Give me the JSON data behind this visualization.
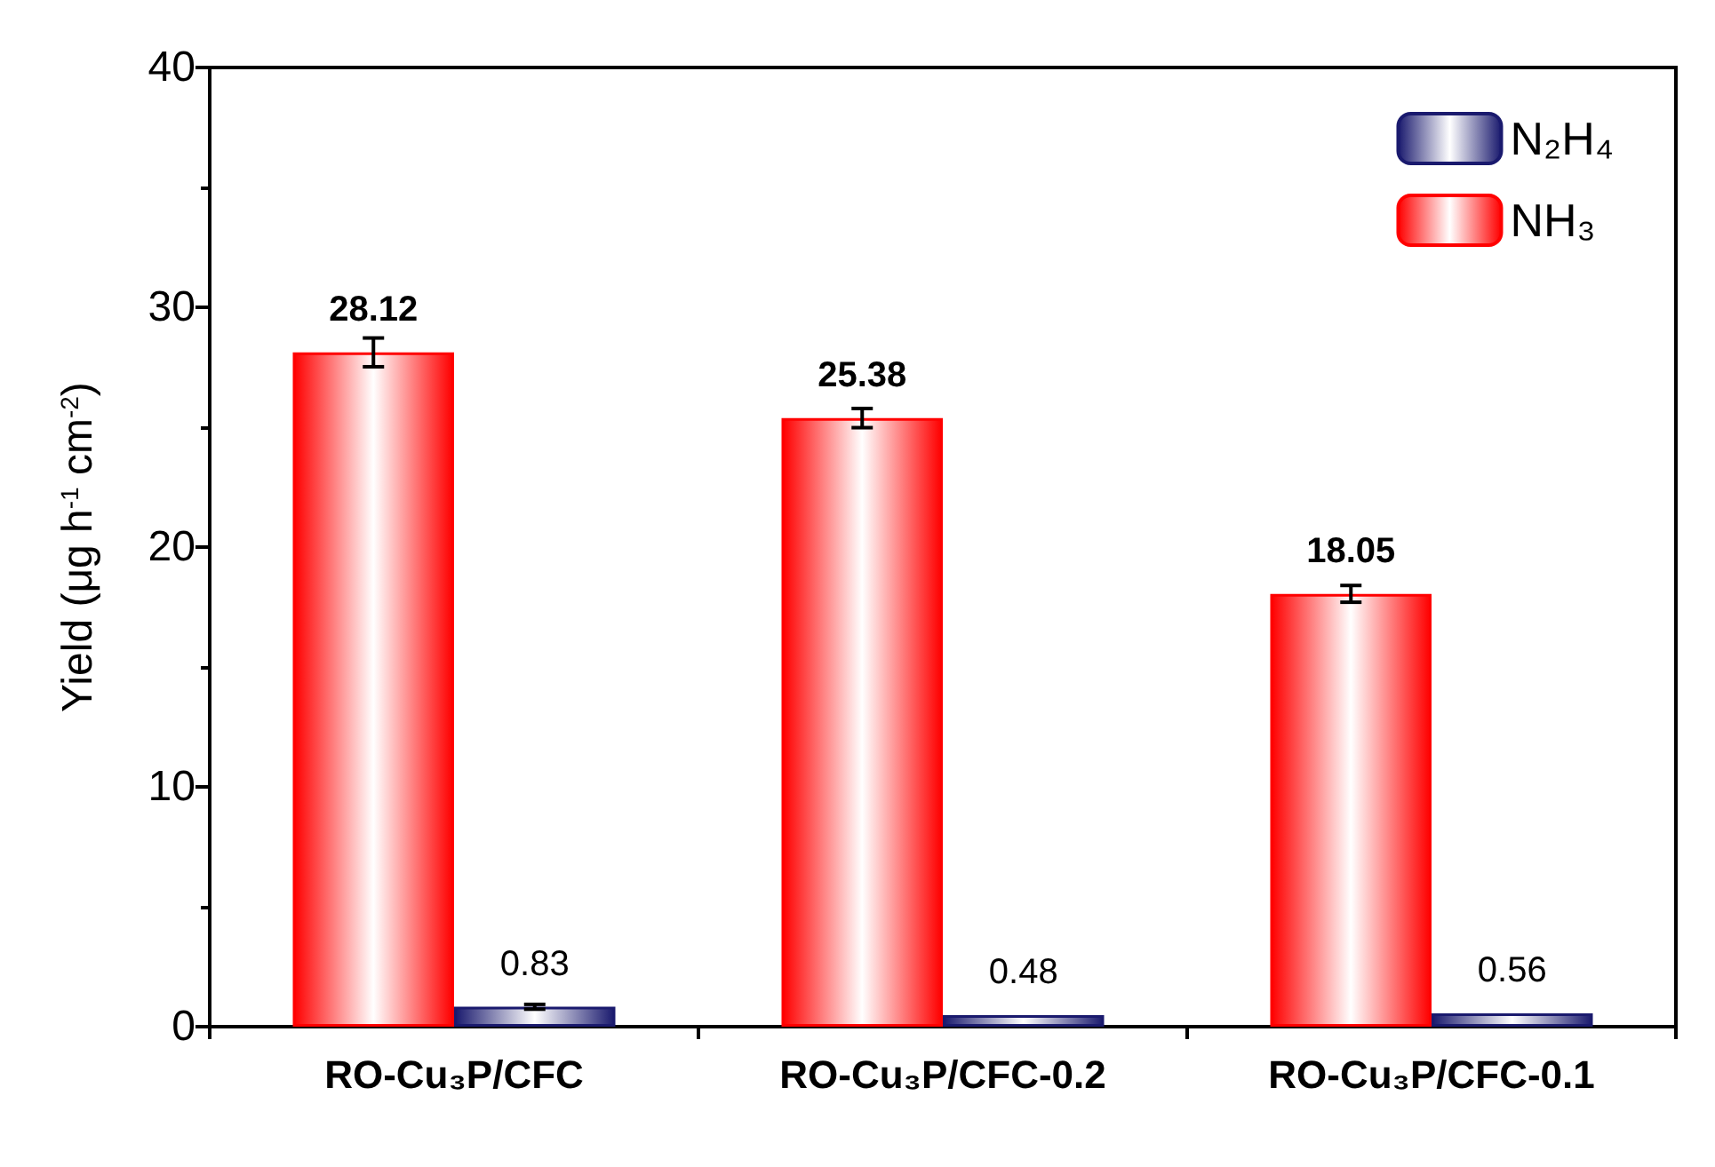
{
  "chart_data": {
    "type": "bar",
    "ylabel": "Yield (μg h$^{-1}$ cm$^{-2}$)",
    "categories": [
      "RO-Cu₃P/CFC",
      "RO-Cu₃P/CFC-0.2",
      "RO-Cu₃P/CFC-0.1"
    ],
    "series": [
      {
        "name": "NH₃",
        "color": "#ff0000",
        "values": [
          28.12,
          25.38,
          18.05
        ],
        "errors": [
          0.6,
          0.4,
          0.35
        ],
        "value_labels": [
          "28.12",
          "25.38",
          "18.05"
        ]
      },
      {
        "name": "N₂H₄",
        "color": "#1a1a6e",
        "values": [
          0.83,
          0.48,
          0.56
        ],
        "errors": [
          0.1,
          null,
          null
        ],
        "value_labels": [
          "0.83",
          "0.48",
          "0.56"
        ]
      }
    ],
    "ylim": [
      0,
      40
    ],
    "yticks": [
      0,
      10,
      20,
      30,
      40
    ],
    "grid": false,
    "legend": "top right"
  }
}
